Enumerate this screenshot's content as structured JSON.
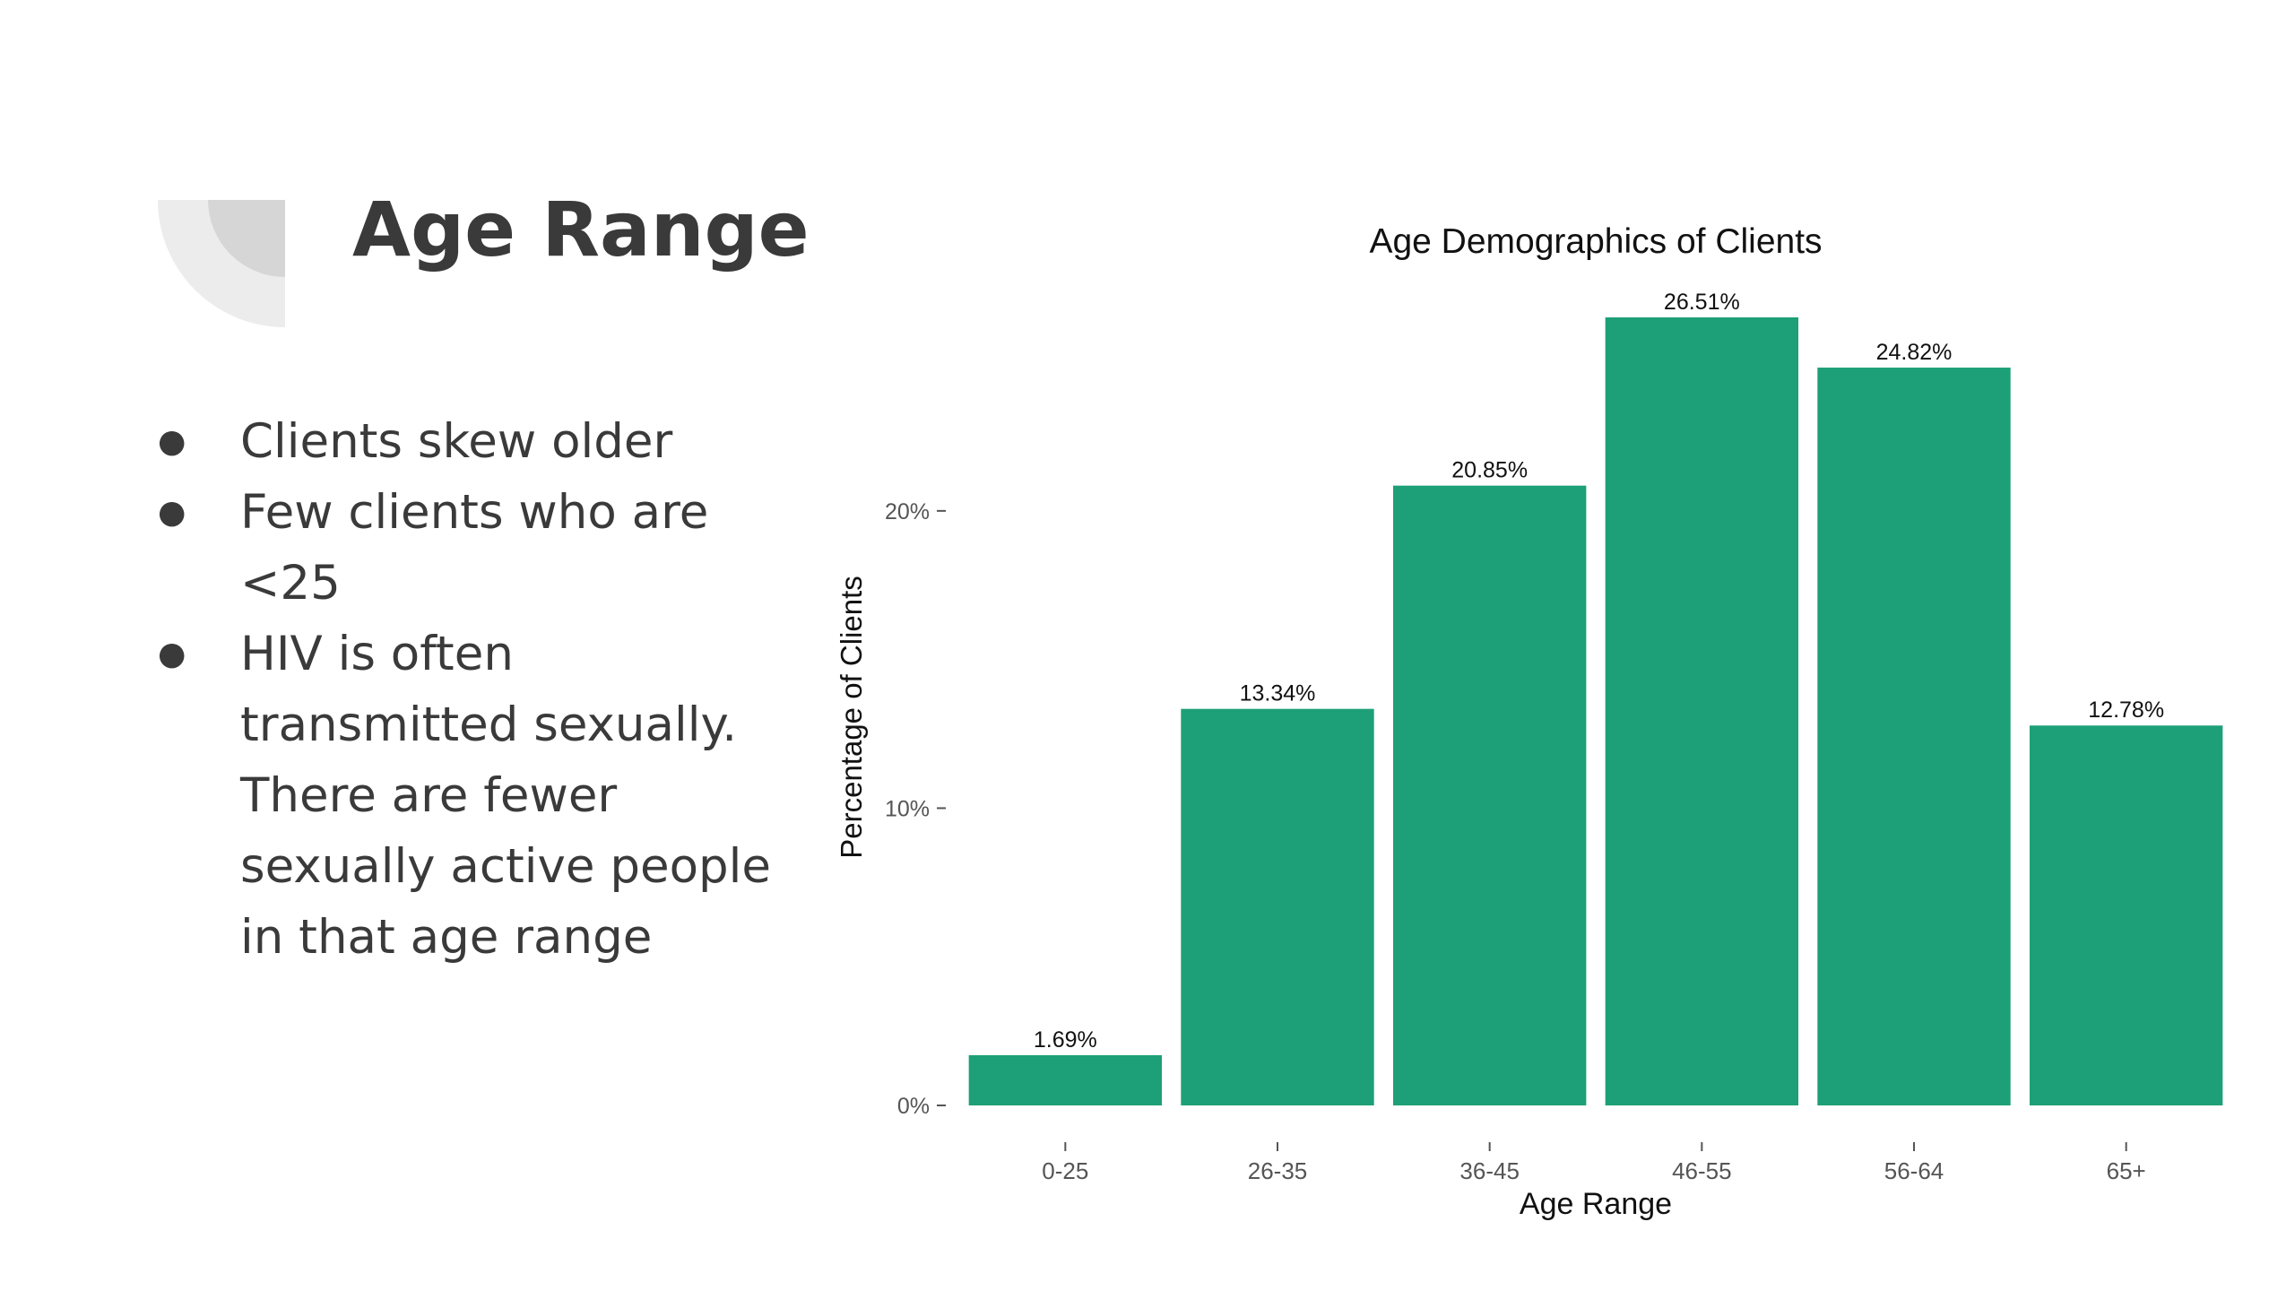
{
  "slide": {
    "title": "Age Range",
    "bullets": [
      "Clients skew older",
      "Few clients who are <25",
      "HIV is often transmitted sexually. There are fewer sexually active people in that age range"
    ]
  },
  "chart_data": {
    "type": "bar",
    "title": "Age Demographics of Clients",
    "xlabel": "Age Range",
    "ylabel": "Percentage of Clients",
    "categories": [
      "0-25",
      "26-35",
      "36-45",
      "46-55",
      "56-64",
      "65+"
    ],
    "values": [
      1.69,
      13.34,
      20.85,
      26.51,
      24.82,
      12.78
    ],
    "value_labels": [
      "1.69%",
      "13.34%",
      "20.85%",
      "26.51%",
      "24.82%",
      "12.78%"
    ],
    "yticks": [
      0,
      10,
      20
    ],
    "ytick_labels": [
      "0%",
      "10%",
      "20%"
    ],
    "ylim": [
      0,
      26.51
    ],
    "grid": false,
    "bar_color": "#1da077"
  },
  "colors": {
    "text": "#3a3a3a",
    "deco_light": "#ececec",
    "deco_dark": "#d6d6d6"
  }
}
